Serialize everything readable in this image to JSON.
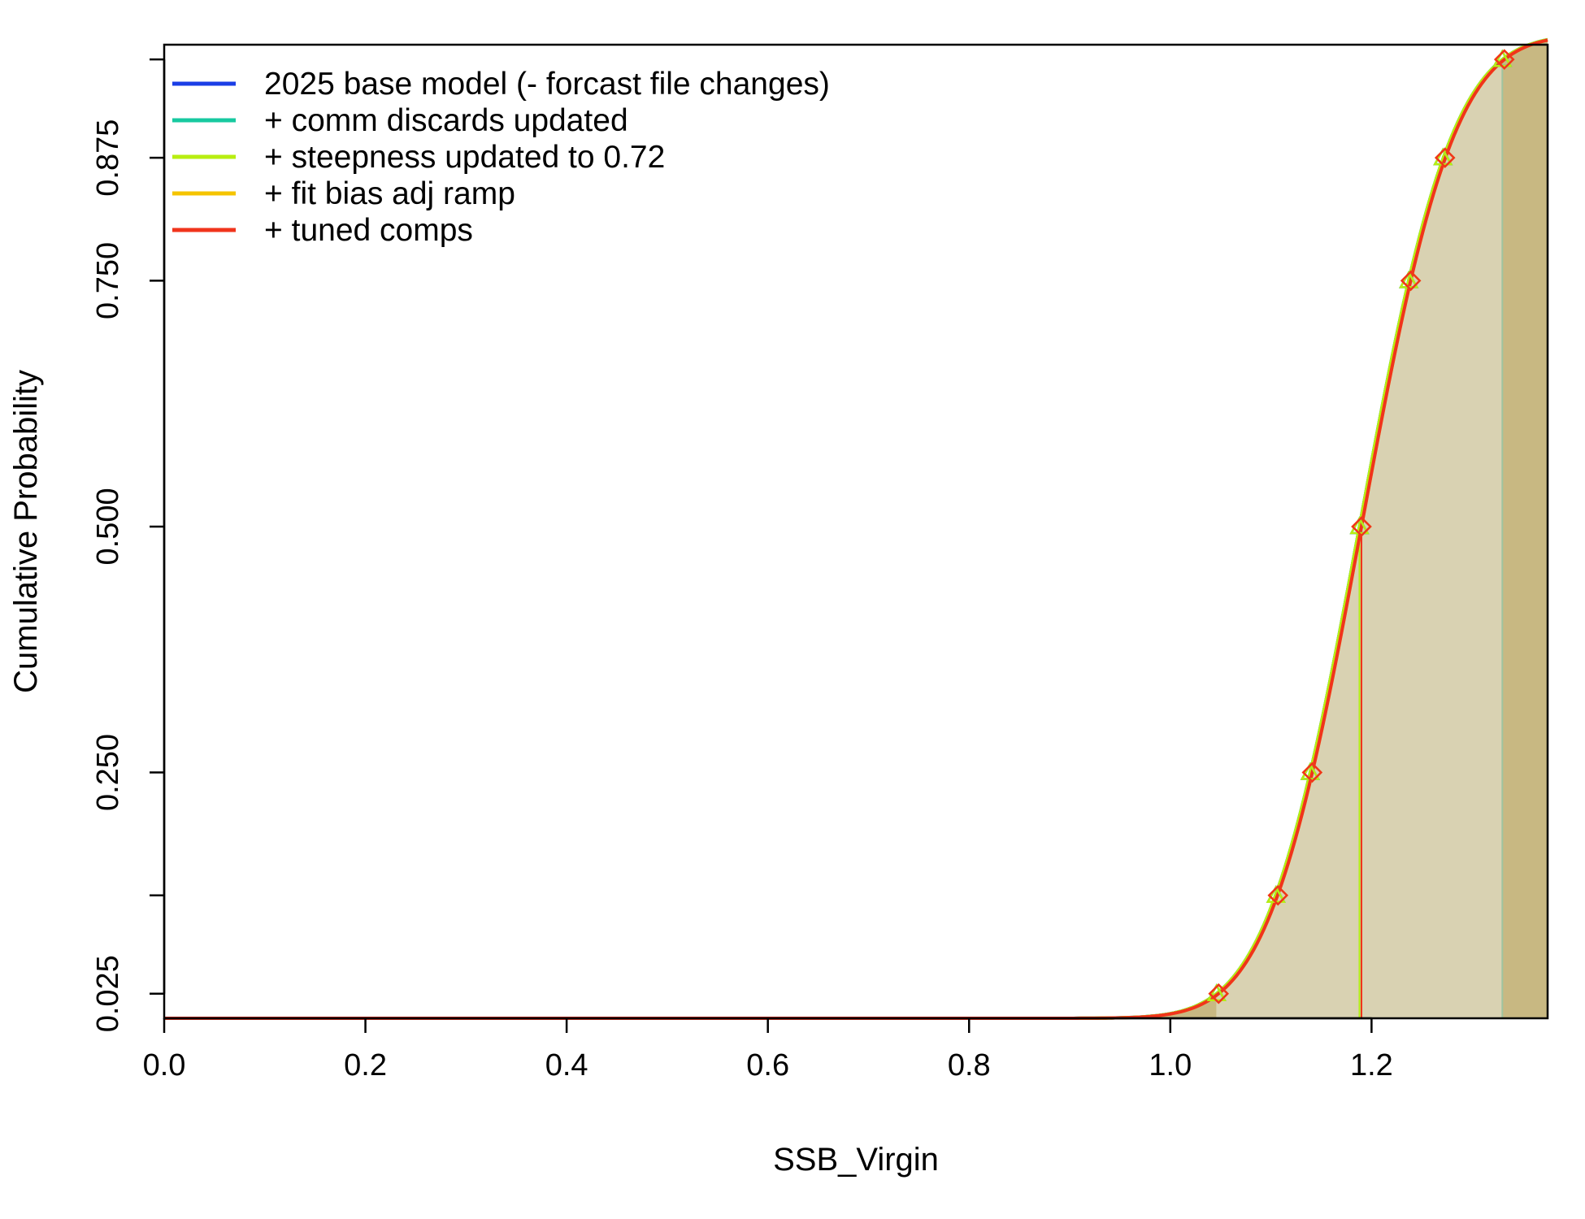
{
  "chart_data": {
    "type": "line",
    "title": "",
    "xlabel": "SSB_Virgin",
    "ylabel": "Cumulative Probability",
    "xlim": [
      0.0,
      1.375
    ],
    "ylim": [
      0.0,
      0.99
    ],
    "x_ticks": [
      "0.0",
      "0.2",
      "0.4",
      "0.6",
      "0.8",
      "1.0",
      "1.2"
    ],
    "y_ticks": [
      "0.025",
      "0.250",
      "0.500",
      "0.750",
      "0.875"
    ],
    "grid": false,
    "legend_position": "top-left",
    "median_x": 1.19,
    "quantile_levels": [
      0.025,
      0.125,
      0.25,
      0.5,
      0.75,
      0.875,
      0.975
    ],
    "shading": {
      "ci_low": 1.046,
      "ci_high": 1.33,
      "colors": [
        "#c8b882",
        "#d9d2b2",
        "#c8b882"
      ]
    },
    "series": [
      {
        "name": "2025 base model (- forcast file changes)",
        "color": "#1a3ee6",
        "mean": 1.188,
        "sd": 0.0725,
        "quantiles": [
          1.046,
          1.105,
          1.139,
          1.188,
          1.237,
          1.271,
          1.33
        ]
      },
      {
        "name": "+ comm discards updated",
        "color": "#17c9a0",
        "mean": 1.188,
        "sd": 0.0725,
        "quantiles": [
          1.046,
          1.105,
          1.139,
          1.188,
          1.237,
          1.271,
          1.33
        ]
      },
      {
        "name": "+ steepness updated to 0.72",
        "color": "#b8ee10",
        "mean": 1.188,
        "sd": 0.0725,
        "quantiles": [
          1.046,
          1.105,
          1.139,
          1.188,
          1.237,
          1.271,
          1.33
        ]
      },
      {
        "name": "+ fit bias adj ramp",
        "color": "#f5c400",
        "mean": 1.19,
        "sd": 0.0725,
        "quantiles": [
          1.048,
          1.107,
          1.141,
          1.19,
          1.239,
          1.273,
          1.332
        ]
      },
      {
        "name": "+ tuned comps",
        "color": "#f0341c",
        "mean": 1.19,
        "sd": 0.0725,
        "quantiles": [
          1.048,
          1.107,
          1.141,
          1.19,
          1.239,
          1.273,
          1.332
        ]
      }
    ]
  }
}
